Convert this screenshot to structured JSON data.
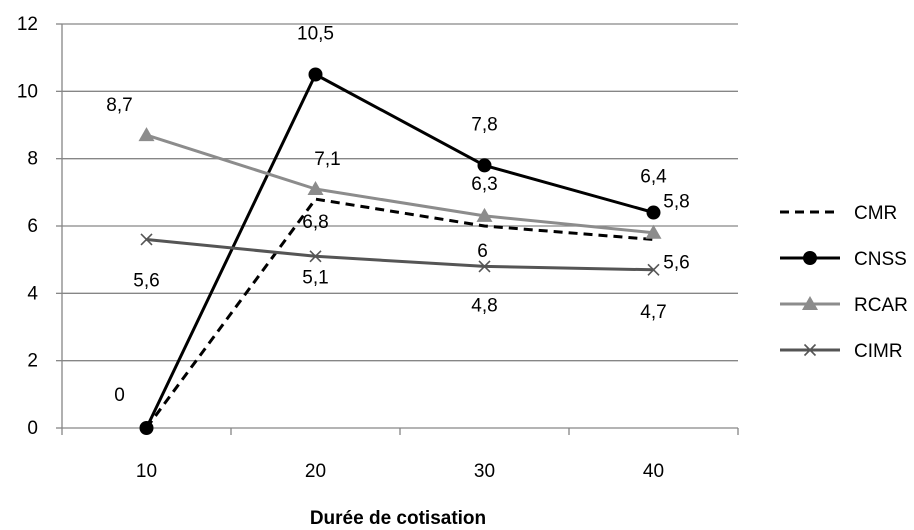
{
  "chart_data": {
    "type": "line",
    "title": "",
    "xlabel": "Durée de cotisation",
    "ylabel": "",
    "ylim": [
      0,
      12
    ],
    "yticks": [
      "0",
      "2",
      "4",
      "6",
      "8",
      "10",
      "12"
    ],
    "categories": [
      "10",
      "20",
      "30",
      "40"
    ],
    "grid": "horizontal",
    "legend": "right",
    "series": [
      {
        "name": "CMR",
        "values": [
          0,
          6.8,
          6.0,
          5.6
        ],
        "labels": [
          "",
          "6,8",
          "6",
          "5,6"
        ],
        "color": "#000000",
        "style": "dashed",
        "marker": "none"
      },
      {
        "name": "CNSS",
        "values": [
          0,
          10.5,
          7.8,
          6.4
        ],
        "labels": [
          "0",
          "10,5",
          "7,8",
          "6,4"
        ],
        "color": "#000000",
        "style": "solid",
        "marker": "circle"
      },
      {
        "name": "RCAR",
        "values": [
          8.7,
          7.1,
          6.3,
          5.8
        ],
        "labels": [
          "8,7",
          "7,1",
          "6,3",
          "5,8"
        ],
        "color": "#8c8c8c",
        "style": "solid",
        "marker": "triangle"
      },
      {
        "name": "CIMR",
        "values": [
          5.6,
          5.1,
          4.8,
          4.7
        ],
        "labels": [
          "5,6",
          "5,1",
          "4,8",
          "4,7"
        ],
        "color": "#555555",
        "style": "solid",
        "marker": "x"
      }
    ]
  }
}
